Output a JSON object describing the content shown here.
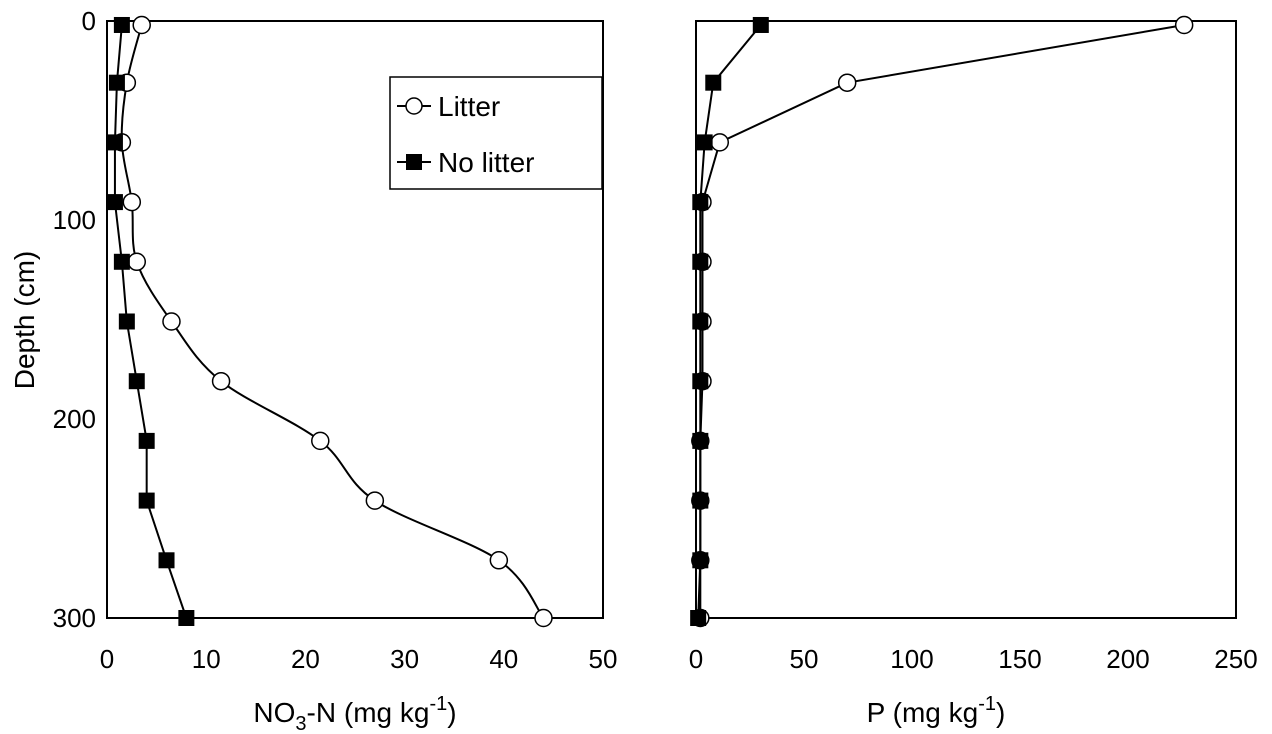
{
  "chart_data": [
    {
      "type": "line",
      "orientation": "depth-profile",
      "ylabel": "Depth (cm)",
      "xlabel": {
        "main": "NO",
        "sub": "3",
        "rest": "-N (mg kg",
        "sup": "-1",
        "close": ")"
      },
      "xlim": [
        0,
        50
      ],
      "ylim": [
        300,
        0
      ],
      "y_inverted": true,
      "xticks": [
        0,
        10,
        20,
        30,
        40,
        50
      ],
      "yticks": [
        0,
        100,
        200,
        300
      ],
      "legend": {
        "position": "upper-middle",
        "entries": [
          "Litter",
          "No litter"
        ]
      },
      "series": [
        {
          "name": "Litter",
          "marker": "open-circle",
          "smooth": true,
          "points": [
            {
              "x": 3.5,
              "y": 2
            },
            {
              "x": 2,
              "y": 31
            },
            {
              "x": 1.5,
              "y": 61
            },
            {
              "x": 2.5,
              "y": 91
            },
            {
              "x": 3,
              "y": 121
            },
            {
              "x": 6.5,
              "y": 151
            },
            {
              "x": 11.5,
              "y": 181
            },
            {
              "x": 21.5,
              "y": 211
            },
            {
              "x": 27,
              "y": 241
            },
            {
              "x": 39.5,
              "y": 271
            },
            {
              "x": 44,
              "y": 300
            }
          ]
        },
        {
          "name": "No litter",
          "marker": "filled-square",
          "smooth": false,
          "points": [
            {
              "x": 1.5,
              "y": 2
            },
            {
              "x": 1,
              "y": 31
            },
            {
              "x": 0.8,
              "y": 61
            },
            {
              "x": 0.8,
              "y": 91
            },
            {
              "x": 1.5,
              "y": 121
            },
            {
              "x": 2,
              "y": 151
            },
            {
              "x": 3,
              "y": 181
            },
            {
              "x": 4,
              "y": 211
            },
            {
              "x": 4,
              "y": 241
            },
            {
              "x": 6,
              "y": 271
            },
            {
              "x": 8,
              "y": 300
            }
          ]
        }
      ]
    },
    {
      "type": "line",
      "orientation": "depth-profile",
      "xlabel": {
        "main": "P (mg kg",
        "sup": "-1",
        "close": ")"
      },
      "xlim": [
        0,
        250
      ],
      "ylim": [
        300,
        0
      ],
      "y_inverted": true,
      "xticks": [
        0,
        50,
        100,
        150,
        200,
        250
      ],
      "series": [
        {
          "name": "Litter",
          "marker": "open-circle",
          "smooth": false,
          "points": [
            {
              "x": 226,
              "y": 2
            },
            {
              "x": 70,
              "y": 31
            },
            {
              "x": 11,
              "y": 61
            },
            {
              "x": 3,
              "y": 91
            },
            {
              "x": 3,
              "y": 121
            },
            {
              "x": 3,
              "y": 151
            },
            {
              "x": 3,
              "y": 181
            },
            {
              "x": 2,
              "y": 211
            },
            {
              "x": 2,
              "y": 241
            },
            {
              "x": 2,
              "y": 271
            },
            {
              "x": 2,
              "y": 300
            }
          ]
        },
        {
          "name": "No litter",
          "marker": "filled-square",
          "smooth": false,
          "points": [
            {
              "x": 30,
              "y": 2
            },
            {
              "x": 8,
              "y": 31
            },
            {
              "x": 4,
              "y": 61
            },
            {
              "x": 2,
              "y": 91
            },
            {
              "x": 2,
              "y": 121
            },
            {
              "x": 2,
              "y": 151
            },
            {
              "x": 2,
              "y": 181
            },
            {
              "x": 2,
              "y": 211
            },
            {
              "x": 2,
              "y": 241
            },
            {
              "x": 2,
              "y": 271
            },
            {
              "x": 1,
              "y": 300
            }
          ]
        }
      ]
    }
  ],
  "colors": {
    "line": "#000000",
    "background": "#ffffff"
  }
}
